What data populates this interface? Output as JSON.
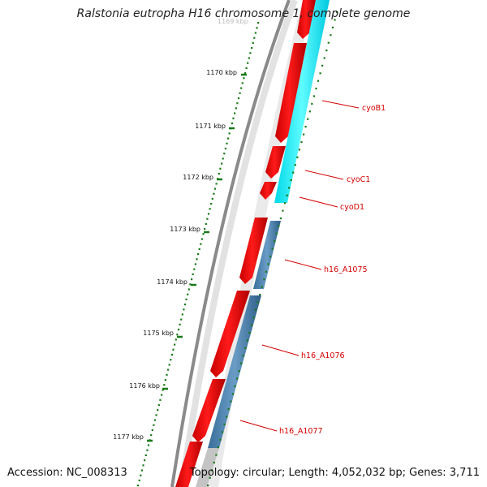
{
  "title": "Ralstonia eutropha H16 chromosome 1, complete genome",
  "footer": {
    "accession": "Accession: NC_008313",
    "summary": "Topology: circular; Length: 4,052,032 bp; Genes: 3,711"
  },
  "ruler": {
    "faded_tick_label": "1169 kbp",
    "ticks": [
      "1170 kbp",
      "1171 kbp",
      "1172 kbp",
      "1173 kbp",
      "1174 kbp",
      "1175 kbp",
      "1176 kbp",
      "1177 kbp"
    ]
  },
  "genes": [
    {
      "label": "cyoB1"
    },
    {
      "label": "cyoC1"
    },
    {
      "label": "cyoD1"
    },
    {
      "label": "h16_A1075"
    },
    {
      "label": "h16_A1076"
    },
    {
      "label": "h16_A1077"
    }
  ],
  "colors": {
    "forward_cds": "#ff0000",
    "cyo_operon": "#00ffff",
    "other_feature": "#4682b4",
    "backbone": "#7a7a7a",
    "ticks": "#1a7a1a",
    "labels": "#d40000"
  }
}
